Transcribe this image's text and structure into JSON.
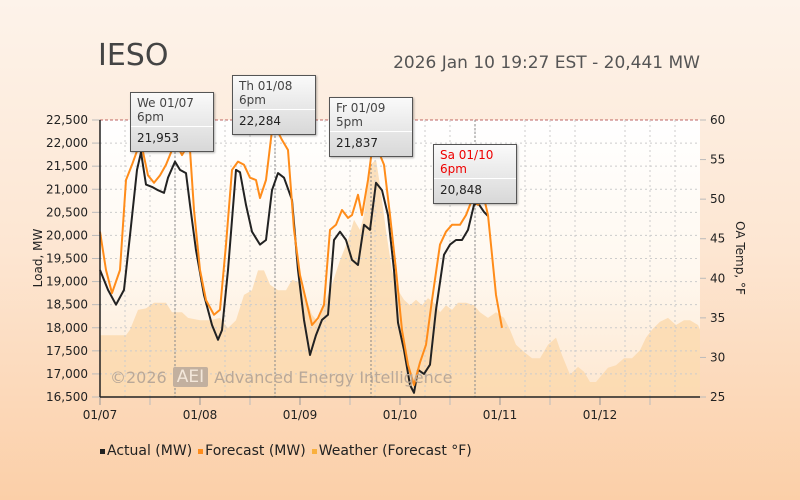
{
  "header": {
    "title": "IESO",
    "subtitle": "2026 Jan 10 19:27 EST - 20,441 MW"
  },
  "watermark": {
    "copyright": "©2026",
    "logo": "AEI",
    "company": "Advanced Energy Intelligence"
  },
  "tooltips": [
    {
      "label": "We 01/07 6pm",
      "value": "21,953",
      "day": 0.75,
      "highlight": false
    },
    {
      "label": "Th 01/08 6pm",
      "value": "22,284",
      "day": 1.75,
      "highlight": false
    },
    {
      "label": "Fr 01/09 5pm",
      "value": "21,837",
      "day": 2.71,
      "highlight": false
    },
    {
      "label": "Sa 01/10 6pm",
      "value": "20,848",
      "day": 3.75,
      "highlight": true
    }
  ],
  "chart_data": {
    "type": "line",
    "x_unit": "days since 01/07 00:00",
    "xlim": [
      0,
      6
    ],
    "x_ticks": [
      {
        "v": 0,
        "label": "01/07"
      },
      {
        "v": 1,
        "label": "01/08"
      },
      {
        "v": 2,
        "label": "01/09"
      },
      {
        "v": 3,
        "label": "01/10"
      },
      {
        "v": 4,
        "label": "01/11"
      },
      {
        "v": 5,
        "label": "01/12"
      }
    ],
    "ylabel": "Load, MW",
    "ylim": [
      16500,
      22500
    ],
    "y_ticks": [
      "16,500",
      "17,000",
      "17,500",
      "18,000",
      "18,500",
      "19,000",
      "19,500",
      "20,000",
      "20,500",
      "21,000",
      "21,500",
      "22,000",
      "22,500"
    ],
    "y2label": "OA Temp, °F",
    "y2lim": [
      25,
      60
    ],
    "y2_ticks": [
      "25",
      "30",
      "35",
      "40",
      "45",
      "50",
      "55",
      "60"
    ],
    "colors": {
      "actual": "#222222",
      "forecast": "#ff8c1a",
      "weather": "#fbd7a8"
    },
    "series": [
      {
        "name": "Actual (MW)",
        "axis": "left",
        "points": [
          [
            0,
            19250
          ],
          [
            0.08,
            18820
          ],
          [
            0.16,
            18500
          ],
          [
            0.24,
            18820
          ],
          [
            0.3,
            20000
          ],
          [
            0.37,
            21420
          ],
          [
            0.41,
            21800
          ],
          [
            0.46,
            21100
          ],
          [
            0.52,
            21050
          ],
          [
            0.58,
            20980
          ],
          [
            0.64,
            20920
          ],
          [
            0.68,
            21250
          ],
          [
            0.75,
            21600
          ],
          [
            0.8,
            21420
          ],
          [
            0.86,
            21350
          ],
          [
            0.9,
            20660
          ],
          [
            0.96,
            19680
          ],
          [
            1.04,
            18710
          ],
          [
            1.12,
            18060
          ],
          [
            1.18,
            17740
          ],
          [
            1.22,
            17950
          ],
          [
            1.28,
            19250
          ],
          [
            1.36,
            21420
          ],
          [
            1.4,
            21370
          ],
          [
            1.46,
            20660
          ],
          [
            1.52,
            20080
          ],
          [
            1.6,
            19800
          ],
          [
            1.66,
            19900
          ],
          [
            1.72,
            20980
          ],
          [
            1.78,
            21350
          ],
          [
            1.84,
            21250
          ],
          [
            1.92,
            20770
          ],
          [
            1.98,
            19250
          ],
          [
            2.04,
            18170
          ],
          [
            2.1,
            17410
          ],
          [
            2.16,
            17840
          ],
          [
            2.22,
            18170
          ],
          [
            2.28,
            18280
          ],
          [
            2.34,
            19900
          ],
          [
            2.4,
            20080
          ],
          [
            2.46,
            19900
          ],
          [
            2.52,
            19470
          ],
          [
            2.58,
            19360
          ],
          [
            2.64,
            20230
          ],
          [
            2.7,
            20120
          ],
          [
            2.76,
            21140
          ],
          [
            2.82,
            20980
          ],
          [
            2.88,
            20440
          ],
          [
            2.94,
            19250
          ],
          [
            2.98,
            18110
          ],
          [
            3.04,
            17520
          ],
          [
            3.1,
            16760
          ],
          [
            3.14,
            16590
          ],
          [
            3.18,
            17090
          ],
          [
            3.24,
            17000
          ],
          [
            3.3,
            17200
          ],
          [
            3.36,
            18390
          ],
          [
            3.44,
            19580
          ],
          [
            3.5,
            19800
          ],
          [
            3.56,
            19900
          ],
          [
            3.62,
            19900
          ],
          [
            3.68,
            20120
          ],
          [
            3.74,
            20660
          ],
          [
            3.78,
            20700
          ],
          [
            3.84,
            20510
          ],
          [
            3.88,
            20420
          ]
        ]
      },
      {
        "name": "Forecast (MW)",
        "axis": "left",
        "points": [
          [
            0,
            20080
          ],
          [
            0.06,
            19250
          ],
          [
            0.12,
            18750
          ],
          [
            0.2,
            19250
          ],
          [
            0.26,
            21200
          ],
          [
            0.32,
            21530
          ],
          [
            0.38,
            21890
          ],
          [
            0.42,
            21910
          ],
          [
            0.48,
            21300
          ],
          [
            0.54,
            21140
          ],
          [
            0.6,
            21300
          ],
          [
            0.66,
            21530
          ],
          [
            0.72,
            21850
          ],
          [
            0.77,
            21950
          ],
          [
            0.82,
            21740
          ],
          [
            0.86,
            21890
          ],
          [
            0.9,
            21850
          ],
          [
            0.94,
            20550
          ],
          [
            1.0,
            19250
          ],
          [
            1.06,
            18600
          ],
          [
            1.14,
            18280
          ],
          [
            1.2,
            18390
          ],
          [
            1.26,
            19800
          ],
          [
            1.32,
            21420
          ],
          [
            1.38,
            21600
          ],
          [
            1.44,
            21530
          ],
          [
            1.5,
            21250
          ],
          [
            1.56,
            21200
          ],
          [
            1.6,
            20810
          ],
          [
            1.66,
            21200
          ],
          [
            1.72,
            22280
          ],
          [
            1.77,
            22280
          ],
          [
            1.82,
            22070
          ],
          [
            1.88,
            21850
          ],
          [
            1.94,
            20120
          ],
          [
            2.0,
            19140
          ],
          [
            2.06,
            18600
          ],
          [
            2.12,
            18060
          ],
          [
            2.18,
            18210
          ],
          [
            2.24,
            18500
          ],
          [
            2.3,
            20120
          ],
          [
            2.36,
            20230
          ],
          [
            2.42,
            20550
          ],
          [
            2.48,
            20380
          ],
          [
            2.52,
            20440
          ],
          [
            2.58,
            20880
          ],
          [
            2.62,
            20440
          ],
          [
            2.68,
            21200
          ],
          [
            2.72,
            21850
          ],
          [
            2.78,
            21850
          ],
          [
            2.84,
            21530
          ],
          [
            2.9,
            20440
          ],
          [
            2.96,
            19250
          ],
          [
            3.02,
            17950
          ],
          [
            3.08,
            17200
          ],
          [
            3.14,
            16760
          ],
          [
            3.2,
            17250
          ],
          [
            3.26,
            17630
          ],
          [
            3.32,
            18600
          ],
          [
            3.4,
            19800
          ],
          [
            3.46,
            20080
          ],
          [
            3.52,
            20230
          ],
          [
            3.6,
            20230
          ],
          [
            3.66,
            20440
          ],
          [
            3.72,
            20770
          ],
          [
            3.78,
            20660
          ],
          [
            3.84,
            20810
          ],
          [
            3.88,
            20440
          ],
          [
            3.92,
            19580
          ],
          [
            3.96,
            18710
          ],
          [
            4.02,
            18000
          ]
        ]
      },
      {
        "name": "Weather (Forecast °F)",
        "axis": "right",
        "type": "area",
        "points": [
          [
            0,
            32.8
          ],
          [
            0.26,
            32.8
          ],
          [
            0.3,
            33.5
          ],
          [
            0.38,
            36
          ],
          [
            0.46,
            36.2
          ],
          [
            0.54,
            36.9
          ],
          [
            0.66,
            36.9
          ],
          [
            0.72,
            35.7
          ],
          [
            0.82,
            35.7
          ],
          [
            0.88,
            35
          ],
          [
            1.0,
            34.7
          ],
          [
            1.1,
            34.7
          ],
          [
            1.2,
            35
          ],
          [
            1.28,
            33.7
          ],
          [
            1.36,
            34.7
          ],
          [
            1.44,
            37.9
          ],
          [
            1.52,
            38.5
          ],
          [
            1.58,
            41
          ],
          [
            1.64,
            41
          ],
          [
            1.7,
            39.2
          ],
          [
            1.78,
            38.5
          ],
          [
            1.86,
            38.5
          ],
          [
            1.92,
            39.8
          ],
          [
            2.0,
            39.5
          ],
          [
            2.06,
            37.5
          ],
          [
            2.12,
            35.4
          ],
          [
            2.18,
            34.5
          ],
          [
            2.26,
            37.3
          ],
          [
            2.32,
            39.2
          ],
          [
            2.4,
            42.3
          ],
          [
            2.48,
            44.8
          ],
          [
            2.54,
            47.4
          ],
          [
            2.6,
            46.1
          ],
          [
            2.64,
            48
          ],
          [
            2.7,
            54.3
          ],
          [
            2.76,
            55
          ],
          [
            2.8,
            51.8
          ],
          [
            2.86,
            46
          ],
          [
            2.92,
            41
          ],
          [
            2.98,
            38.5
          ],
          [
            3.04,
            37.3
          ],
          [
            3.1,
            36.6
          ],
          [
            3.16,
            37.3
          ],
          [
            3.22,
            36.6
          ],
          [
            3.28,
            37.5
          ],
          [
            3.34,
            36.9
          ],
          [
            3.4,
            35.7
          ],
          [
            3.46,
            36.6
          ],
          [
            3.52,
            36
          ],
          [
            3.58,
            36.9
          ],
          [
            3.66,
            36.9
          ],
          [
            3.74,
            36.6
          ],
          [
            3.8,
            35.7
          ],
          [
            3.88,
            35
          ],
          [
            3.96,
            35.7
          ],
          [
            4.04,
            35
          ],
          [
            4.1,
            33.5
          ],
          [
            4.16,
            31.6
          ],
          [
            4.24,
            30.7
          ],
          [
            4.32,
            29.9
          ],
          [
            4.4,
            29.9
          ],
          [
            4.48,
            31.6
          ],
          [
            4.56,
            32.5
          ],
          [
            4.62,
            30.3
          ],
          [
            4.7,
            27.8
          ],
          [
            4.78,
            28.8
          ],
          [
            4.84,
            28.2
          ],
          [
            4.9,
            26.9
          ],
          [
            4.96,
            26.9
          ],
          [
            5.02,
            27.8
          ],
          [
            5.08,
            28.7
          ],
          [
            5.16,
            29
          ],
          [
            5.24,
            29.9
          ],
          [
            5.32,
            29.9
          ],
          [
            5.4,
            30.9
          ],
          [
            5.46,
            32.5
          ],
          [
            5.52,
            33.5
          ],
          [
            5.6,
            34.5
          ],
          [
            5.68,
            35
          ],
          [
            5.76,
            34.1
          ],
          [
            5.84,
            34.7
          ],
          [
            5.9,
            34.7
          ],
          [
            5.98,
            34.1
          ],
          [
            6.0,
            33.5
          ]
        ]
      }
    ],
    "legend": {
      "position": "bottom-left",
      "items": [
        "Actual (MW)",
        "Forecast (MW)",
        "Weather (Forecast °F)"
      ]
    }
  }
}
